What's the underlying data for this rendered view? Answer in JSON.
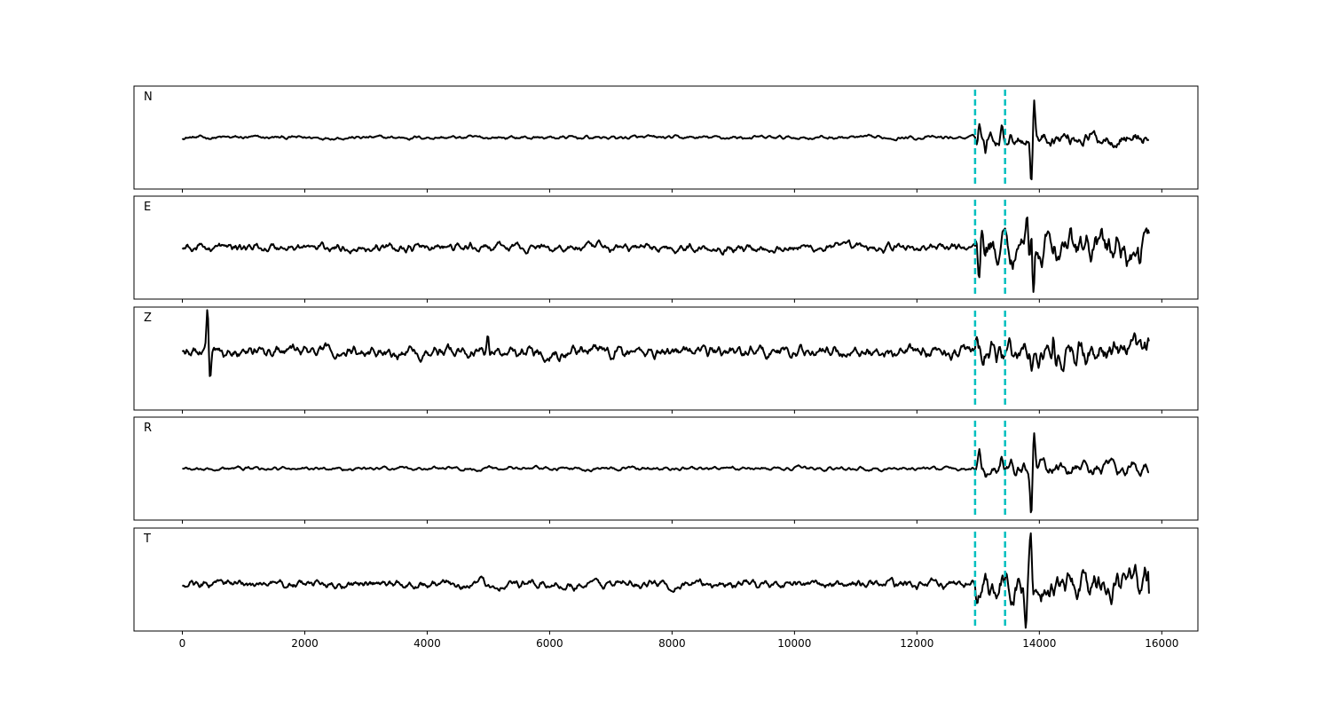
{
  "chart_data": {
    "type": "line",
    "layout": "5 stacked panels sharing x axis",
    "xlim": [
      -790,
      16590
    ],
    "x_ticks": [
      0,
      2000,
      4000,
      6000,
      8000,
      10000,
      12000,
      14000,
      16000
    ],
    "x_tick_labels": [
      "0",
      "2000",
      "4000",
      "6000",
      "8000",
      "10000",
      "12000",
      "14000",
      "16000"
    ],
    "y_axis_visible": false,
    "grid": false,
    "trace_color": "#000000",
    "marker_color": "#00bfbf",
    "vertical_markers": [
      12950,
      13440
    ],
    "x_end": 15800,
    "panels": [
      {
        "label": "N",
        "ylim": [
          -1.1,
          1.1
        ],
        "noise": 0.05,
        "post_event_amplitude": 0.2,
        "peaks": [
          [
            13020,
            0.35
          ],
          [
            13120,
            -0.25
          ],
          [
            13380,
            0.28
          ],
          [
            13870,
            -0.98
          ],
          [
            13915,
            0.88
          ]
        ],
        "end_value": -0.05
      },
      {
        "label": "E",
        "ylim": [
          -1.1,
          1.1
        ],
        "noise": 0.12,
        "post_event_amplitude": 0.45,
        "peaks": [
          [
            13010,
            -0.6
          ],
          [
            13060,
            0.48
          ],
          [
            13800,
            0.85
          ],
          [
            13870,
            0.85
          ],
          [
            13900,
            -0.9
          ],
          [
            15700,
            0.32
          ],
          [
            15640,
            -0.5
          ]
        ],
        "end_value": 0.3
      },
      {
        "label": "Z",
        "ylim": [
          -1.25,
          0.95
        ],
        "noise": 0.17,
        "post_event_amplitude": 0.35,
        "peaks": [
          [
            410,
            1.0
          ],
          [
            450,
            -0.7
          ],
          [
            4990,
            0.45
          ],
          [
            13880,
            -0.5
          ],
          [
            14230,
            0.45
          ],
          [
            15800,
            0.25
          ]
        ],
        "end_value": 0.22
      },
      {
        "label": "R",
        "ylim": [
          -1.1,
          1.1
        ],
        "noise": 0.05,
        "post_event_amplitude": 0.2,
        "peaks": [
          [
            13020,
            0.4
          ],
          [
            13120,
            -0.22
          ],
          [
            13380,
            0.25
          ],
          [
            13870,
            -0.88
          ],
          [
            13910,
            0.87
          ]
        ],
        "end_value": -0.08
      },
      {
        "label": "T",
        "ylim": [
          -1.0,
          1.2
        ],
        "noise": 0.12,
        "post_event_amplitude": 0.4,
        "peaks": [
          [
            13780,
            -0.95
          ],
          [
            13860,
            0.84
          ],
          [
            15380,
            0.4
          ],
          [
            15720,
            0.4
          ],
          [
            15650,
            -0.4
          ]
        ],
        "end_value": -0.2
      }
    ]
  }
}
